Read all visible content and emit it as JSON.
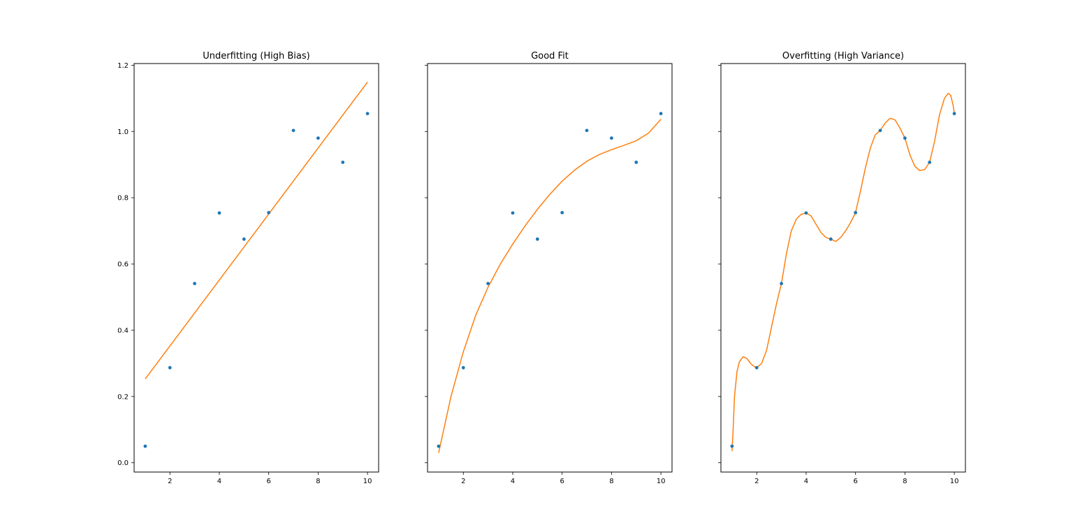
{
  "chart_data": [
    {
      "type": "scatter",
      "title": "Underfitting (High Bias)",
      "xlim": [
        0.55,
        10.45
      ],
      "ylim": [
        -0.028,
        1.205
      ],
      "xticks": [
        2,
        4,
        6,
        8,
        10
      ],
      "yticks": [
        0.0,
        0.2,
        0.4,
        0.6,
        0.8,
        1.0,
        1.2
      ],
      "ytick_labels": [
        "0.0",
        "0.2",
        "0.4",
        "0.6",
        "0.8",
        "1.0",
        "1.2"
      ],
      "show_yticklabels": true,
      "points": {
        "x": [
          1,
          2,
          3,
          4,
          5,
          6,
          7,
          8,
          9,
          10
        ],
        "y": [
          0.05,
          0.287,
          0.541,
          0.754,
          0.675,
          0.755,
          1.003,
          0.98,
          0.907,
          1.054
        ]
      },
      "fit": {
        "x": [
          1,
          10
        ],
        "y": [
          0.253,
          1.149
        ]
      },
      "colors": {
        "points": "#1f77b4",
        "fit": "#ff7f0e"
      }
    },
    {
      "type": "scatter",
      "title": "Good Fit",
      "xlim": [
        0.55,
        10.45
      ],
      "ylim": [
        -0.028,
        1.205
      ],
      "xticks": [
        2,
        4,
        6,
        8,
        10
      ],
      "yticks": [
        0.0,
        0.2,
        0.4,
        0.6,
        0.8,
        1.0,
        1.2
      ],
      "ytick_labels": [
        "",
        "",
        "",
        "",
        "",
        "",
        ""
      ],
      "show_yticklabels": false,
      "points": {
        "x": [
          1,
          2,
          3,
          4,
          5,
          6,
          7,
          8,
          9,
          10
        ],
        "y": [
          0.05,
          0.287,
          0.541,
          0.754,
          0.675,
          0.755,
          1.003,
          0.98,
          0.907,
          1.054
        ]
      },
      "fit": {
        "x": [
          1,
          1.5,
          2,
          2.5,
          3,
          3.5,
          4,
          4.5,
          5,
          5.5,
          6,
          6.5,
          7,
          7.5,
          8,
          8.5,
          9,
          9.5,
          10
        ],
        "y": [
          0.03,
          0.2,
          0.335,
          0.445,
          0.53,
          0.6,
          0.66,
          0.715,
          0.765,
          0.81,
          0.85,
          0.883,
          0.91,
          0.93,
          0.945,
          0.958,
          0.972,
          0.995,
          1.037
        ]
      },
      "colors": {
        "points": "#1f77b4",
        "fit": "#ff7f0e"
      }
    },
    {
      "type": "scatter",
      "title": "Overfitting (High Variance)",
      "xlim": [
        0.55,
        10.45
      ],
      "ylim": [
        -0.028,
        1.205
      ],
      "xticks": [
        2,
        4,
        6,
        8,
        10
      ],
      "yticks": [
        0.0,
        0.2,
        0.4,
        0.6,
        0.8,
        1.0,
        1.2
      ],
      "ytick_labels": [
        "",
        "",
        "",
        "",
        "",
        "",
        ""
      ],
      "show_yticklabels": false,
      "points": {
        "x": [
          1,
          2,
          3,
          4,
          5,
          6,
          7,
          8,
          9,
          10
        ],
        "y": [
          0.05,
          0.287,
          0.541,
          0.754,
          0.675,
          0.755,
          1.003,
          0.98,
          0.907,
          1.054
        ]
      },
      "fit": {
        "x": [
          1.0,
          1.05,
          1.1,
          1.2,
          1.3,
          1.45,
          1.6,
          1.75,
          1.9,
          2.0,
          2.2,
          2.4,
          2.6,
          2.8,
          3.0,
          3.2,
          3.4,
          3.6,
          3.8,
          4.0,
          4.2,
          4.4,
          4.6,
          4.8,
          5.0,
          5.2,
          5.4,
          5.6,
          5.8,
          6.0,
          6.2,
          6.4,
          6.6,
          6.8,
          7.0,
          7.2,
          7.4,
          7.6,
          7.8,
          8.0,
          8.2,
          8.4,
          8.6,
          8.8,
          9.0,
          9.2,
          9.4,
          9.6,
          9.75,
          9.85,
          9.95,
          10.0
        ],
        "y": [
          0.035,
          0.11,
          0.2,
          0.275,
          0.305,
          0.32,
          0.315,
          0.3,
          0.29,
          0.287,
          0.3,
          0.34,
          0.41,
          0.48,
          0.541,
          0.63,
          0.7,
          0.735,
          0.75,
          0.754,
          0.745,
          0.72,
          0.695,
          0.68,
          0.675,
          0.668,
          0.68,
          0.7,
          0.725,
          0.755,
          0.82,
          0.89,
          0.95,
          0.99,
          1.003,
          1.025,
          1.04,
          1.035,
          1.01,
          0.98,
          0.93,
          0.895,
          0.882,
          0.885,
          0.907,
          0.97,
          1.05,
          1.1,
          1.115,
          1.11,
          1.08,
          1.054
        ]
      },
      "colors": {
        "points": "#1f77b4",
        "fit": "#ff7f0e"
      }
    }
  ]
}
